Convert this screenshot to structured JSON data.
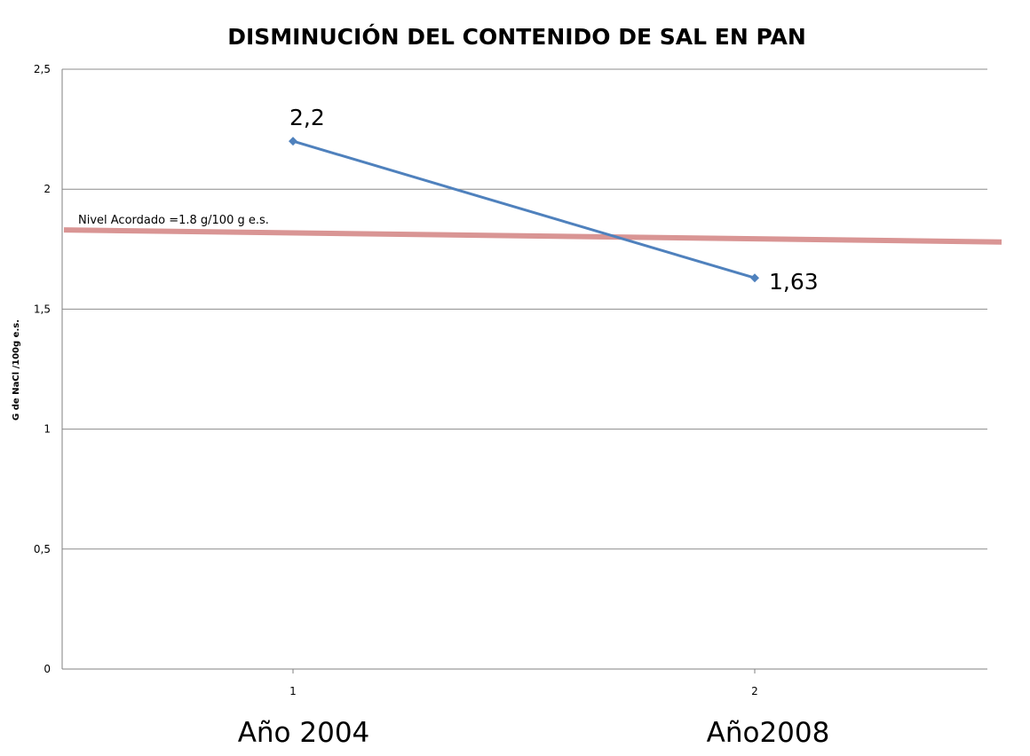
{
  "chart_data": {
    "type": "line",
    "title": "DISMINUCIÓN DEL CONTENIDO DE SAL EN PAN",
    "ylabel": "G de NaCl /100g e.s.",
    "xlabel": "",
    "ylim": [
      0,
      2.5
    ],
    "y_ticks": [
      "0",
      "0,5",
      "1",
      "1,5",
      "2",
      "2,5"
    ],
    "x_ticks": [
      "1",
      "2"
    ],
    "categories": [
      "Año 2004",
      "Año2008"
    ],
    "grid": true,
    "series": [
      {
        "values": [
          2.2,
          1.63
        ],
        "data_labels": [
          "2,2",
          "1,63"
        ]
      }
    ],
    "reference_line": {
      "label": "Nivel Acordado =1.8 g/100 g e.s.",
      "start_value": 1.83,
      "end_value": 1.78
    },
    "colors": {
      "series": "#4f81bd",
      "reference": "#d99594",
      "grid": "#8c8c8c"
    }
  }
}
